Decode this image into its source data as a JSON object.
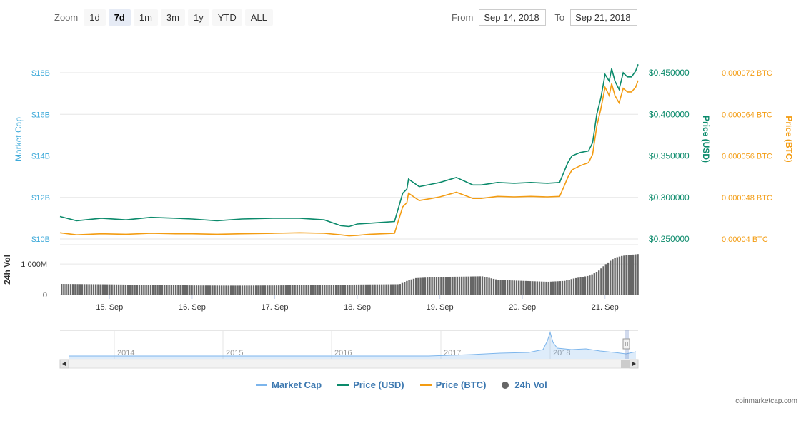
{
  "toolbar": {
    "zoom_label": "Zoom",
    "zoom_buttons": [
      "1d",
      "7d",
      "1m",
      "3m",
      "1y",
      "YTD",
      "ALL"
    ],
    "active_zoom": "7d",
    "from_label": "From",
    "from_value": "Sep 14, 2018",
    "to_label": "To",
    "to_value": "Sep 21, 2018"
  },
  "legend": {
    "market_cap": "Market Cap",
    "price_usd": "Price (USD)",
    "price_btc": "Price (BTC)",
    "volume": "24h Vol"
  },
  "credit": "coinmarketcap.com",
  "colors": {
    "market_cap": "#7cb5ec",
    "price_usd": "#0b8a6b",
    "price_btc": "#f39c12",
    "volume": "#666666",
    "axis_left": "#3ca9d9",
    "axis_usd": "#0b8a6b",
    "axis_btc": "#f39c12"
  },
  "chart_data": {
    "type": "line",
    "x_ticks": [
      "15. Sep",
      "16. Sep",
      "17. Sep",
      "18. Sep",
      "19. Sep",
      "20. Sep",
      "21. Sep"
    ],
    "x_range": [
      14.4,
      21.4
    ],
    "axes": {
      "market_cap": {
        "label": "Market Cap",
        "ticks": [
          "$10B",
          "$12B",
          "$14B",
          "$16B",
          "$18B"
        ],
        "range": [
          10,
          18
        ]
      },
      "price_usd": {
        "label": "Price (USD)",
        "ticks": [
          "$0.250000",
          "$0.300000",
          "$0.350000",
          "$0.400000",
          "$0.450000"
        ],
        "range": [
          0.25,
          0.45
        ]
      },
      "price_btc": {
        "label": "Price (BTC)",
        "ticks": [
          "0.00004 BTC",
          "0.000048 BTC",
          "0.000056 BTC",
          "0.000064 BTC",
          "0.000072 BTC"
        ],
        "range": [
          4e-05,
          7.2e-05
        ]
      },
      "volume": {
        "label": "24h Vol",
        "ticks": [
          "0",
          "1 000M"
        ],
        "range": [
          0,
          1400
        ]
      }
    },
    "series": [
      {
        "name": "Price (USD)",
        "x": [
          14.4,
          14.6,
          14.9,
          15.2,
          15.5,
          15.8,
          16.0,
          16.3,
          16.6,
          17.0,
          17.3,
          17.6,
          17.8,
          17.9,
          18.0,
          18.15,
          18.3,
          18.45,
          18.55,
          18.6,
          18.62,
          18.75,
          18.9,
          19.0,
          19.2,
          19.4,
          19.5,
          19.7,
          19.9,
          20.1,
          20.3,
          20.45,
          20.5,
          20.55,
          20.6,
          20.7,
          20.8,
          20.85,
          20.9,
          20.95,
          21.0,
          21.05,
          21.08,
          21.12,
          21.17,
          21.22,
          21.27,
          21.32,
          21.37,
          21.4
        ],
        "values": [
          0.277,
          0.272,
          0.275,
          0.273,
          0.276,
          0.275,
          0.274,
          0.272,
          0.274,
          0.275,
          0.275,
          0.273,
          0.266,
          0.265,
          0.268,
          0.269,
          0.27,
          0.271,
          0.305,
          0.31,
          0.322,
          0.313,
          0.316,
          0.318,
          0.324,
          0.315,
          0.315,
          0.318,
          0.317,
          0.318,
          0.317,
          0.318,
          0.33,
          0.342,
          0.35,
          0.354,
          0.356,
          0.366,
          0.4,
          0.42,
          0.448,
          0.44,
          0.455,
          0.44,
          0.43,
          0.45,
          0.445,
          0.445,
          0.452,
          0.46
        ]
      },
      {
        "name": "Price (BTC)",
        "x": [
          14.4,
          14.6,
          14.9,
          15.2,
          15.5,
          15.8,
          16.0,
          16.3,
          16.6,
          17.0,
          17.3,
          17.6,
          17.8,
          17.9,
          18.0,
          18.15,
          18.3,
          18.45,
          18.55,
          18.6,
          18.62,
          18.75,
          18.9,
          19.0,
          19.2,
          19.4,
          19.5,
          19.7,
          19.9,
          20.1,
          20.3,
          20.45,
          20.5,
          20.55,
          20.6,
          20.7,
          20.8,
          20.85,
          20.9,
          20.95,
          21.0,
          21.05,
          21.08,
          21.12,
          21.17,
          21.22,
          21.27,
          21.32,
          21.37,
          21.4
        ],
        "values": [
          4.12e-05,
          4.08e-05,
          4.1e-05,
          4.09e-05,
          4.11e-05,
          4.1e-05,
          4.1e-05,
          4.09e-05,
          4.1e-05,
          4.11e-05,
          4.12e-05,
          4.11e-05,
          4.08e-05,
          4.06e-05,
          4.07e-05,
          4.09e-05,
          4.1e-05,
          4.11e-05,
          4.62e-05,
          4.7e-05,
          4.88e-05,
          4.74e-05,
          4.78e-05,
          4.81e-05,
          4.9e-05,
          4.78e-05,
          4.78e-05,
          4.82e-05,
          4.81e-05,
          4.82e-05,
          4.81e-05,
          4.82e-05,
          5e-05,
          5.19e-05,
          5.33e-05,
          5.41e-05,
          5.47e-05,
          5.63e-05,
          6.17e-05,
          6.51e-05,
          6.92e-05,
          6.76e-05,
          6.99e-05,
          6.76e-05,
          6.62e-05,
          6.9e-05,
          6.83e-05,
          6.83e-05,
          6.92e-05,
          7.05e-05
        ]
      },
      {
        "name": "24h Vol",
        "x": [
          14.4,
          15.0,
          15.5,
          16.0,
          16.5,
          17.0,
          17.5,
          18.0,
          18.3,
          18.5,
          18.6,
          18.7,
          19.0,
          19.3,
          19.5,
          19.7,
          19.9,
          20.1,
          20.3,
          20.5,
          20.6,
          20.8,
          20.9,
          21.0,
          21.1,
          21.2,
          21.4
        ],
        "values": [
          350,
          335,
          315,
          300,
          295,
          300,
          310,
          330,
          335,
          340,
          460,
          540,
          580,
          590,
          600,
          480,
          460,
          440,
          420,
          450,
          520,
          620,
          750,
          1000,
          1200,
          1270,
          1330
        ]
      }
    ],
    "navigator": {
      "x_ticks": [
        "2014",
        "2015",
        "2016",
        "2017",
        "2018"
      ]
    }
  }
}
